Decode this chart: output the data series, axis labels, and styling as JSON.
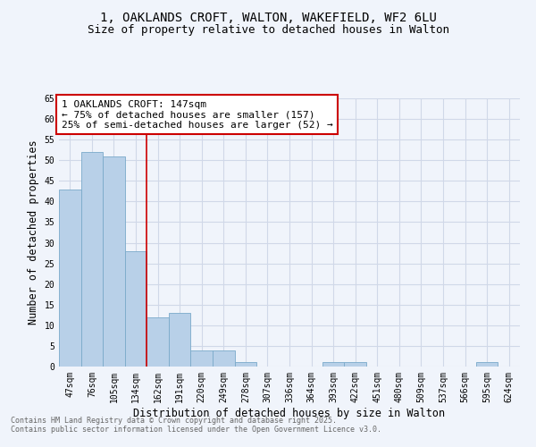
{
  "title1": "1, OAKLANDS CROFT, WALTON, WAKEFIELD, WF2 6LU",
  "title2": "Size of property relative to detached houses in Walton",
  "xlabel": "Distribution of detached houses by size in Walton",
  "ylabel": "Number of detached properties",
  "categories": [
    "47sqm",
    "76sqm",
    "105sqm",
    "134sqm",
    "162sqm",
    "191sqm",
    "220sqm",
    "249sqm",
    "278sqm",
    "307sqm",
    "336sqm",
    "364sqm",
    "393sqm",
    "422sqm",
    "451sqm",
    "480sqm",
    "509sqm",
    "537sqm",
    "566sqm",
    "595sqm",
    "624sqm"
  ],
  "values": [
    43,
    52,
    51,
    28,
    12,
    13,
    4,
    4,
    1,
    0,
    0,
    0,
    1,
    1,
    0,
    0,
    0,
    0,
    0,
    1,
    0
  ],
  "bar_color": "#b8d0e8",
  "bar_edge_color": "#7aaaca",
  "vline_x": 3.5,
  "vline_color": "#cc0000",
  "annotation_title": "1 OAKLANDS CROFT: 147sqm",
  "annotation_line1": "← 75% of detached houses are smaller (157)",
  "annotation_line2": "25% of semi-detached houses are larger (52) →",
  "annotation_box_color": "#ffffff",
  "annotation_box_edge": "#cc0000",
  "ylim": [
    0,
    65
  ],
  "yticks": [
    0,
    5,
    10,
    15,
    20,
    25,
    30,
    35,
    40,
    45,
    50,
    55,
    60,
    65
  ],
  "footer1": "Contains HM Land Registry data © Crown copyright and database right 2025.",
  "footer2": "Contains public sector information licensed under the Open Government Licence v3.0.",
  "bg_color": "#f0f4fb",
  "plot_bg_color": "#f0f4fb",
  "grid_color": "#d0d8e8",
  "title_fontsize": 10,
  "subtitle_fontsize": 9,
  "tick_fontsize": 7,
  "label_fontsize": 8.5,
  "annotation_fontsize": 8
}
